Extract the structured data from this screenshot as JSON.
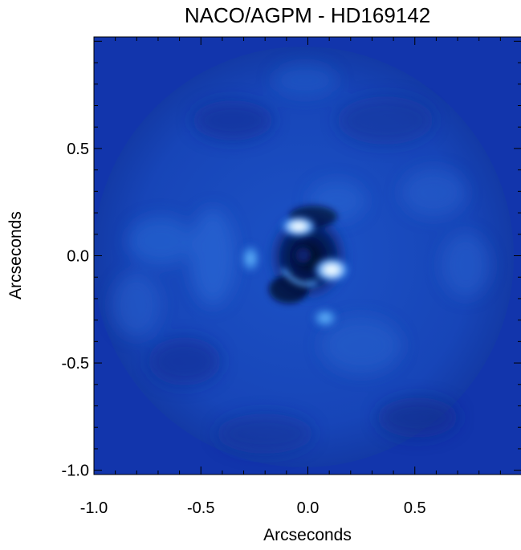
{
  "title": "NACO/AGPM - HD169142",
  "axes": {
    "xlabel": "Arcseconds",
    "ylabel": "Arcseconds",
    "x_ticks": [
      "-1.0",
      "-0.5",
      "0.0",
      "0.5"
    ],
    "y_ticks": [
      "0.5",
      "0.0",
      "-0.5",
      "-1.0"
    ],
    "x_tick_values": [
      -1.0,
      -0.5,
      0.0,
      0.5
    ],
    "y_tick_values": [
      0.5,
      0.0,
      -0.5,
      -1.0
    ],
    "xlim": [
      -1.0,
      1.0
    ],
    "ylim": [
      -1.02,
      1.02
    ]
  },
  "colors": {
    "background": "#1235ac",
    "field": "#1a4bbf",
    "bright": "#ffffff",
    "dark": "#000414"
  }
}
